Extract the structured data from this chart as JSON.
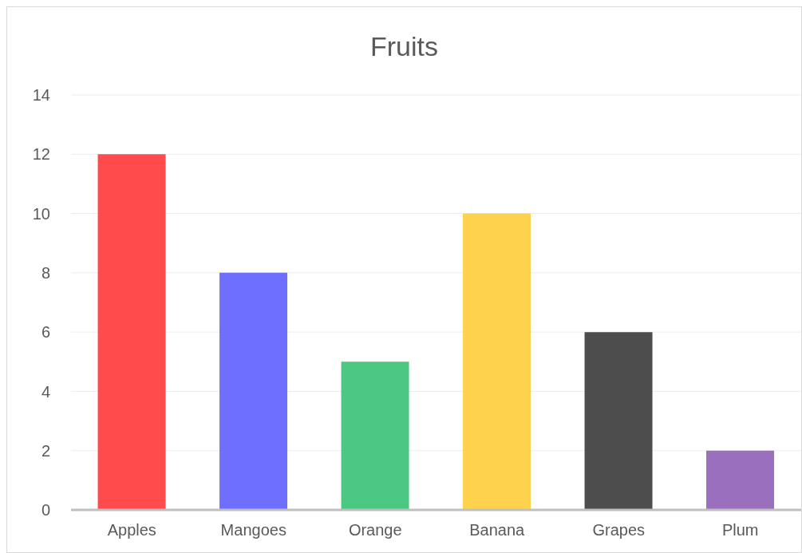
{
  "chart_data": {
    "type": "bar",
    "title": "Fruits",
    "categories": [
      "Apples",
      "Mangoes",
      "Orange",
      "Banana",
      "Grapes",
      "Plum"
    ],
    "values": [
      12,
      8,
      5,
      10,
      6,
      2
    ],
    "colors": [
      "#ff4b4b",
      "#6f6fff",
      "#4dc883",
      "#ffd24d",
      "#4d4d4d",
      "#9a6fbd"
    ],
    "ylim": [
      0,
      14
    ],
    "yticks": [
      0,
      2,
      4,
      6,
      8,
      10,
      12,
      14
    ],
    "grid": "y"
  }
}
